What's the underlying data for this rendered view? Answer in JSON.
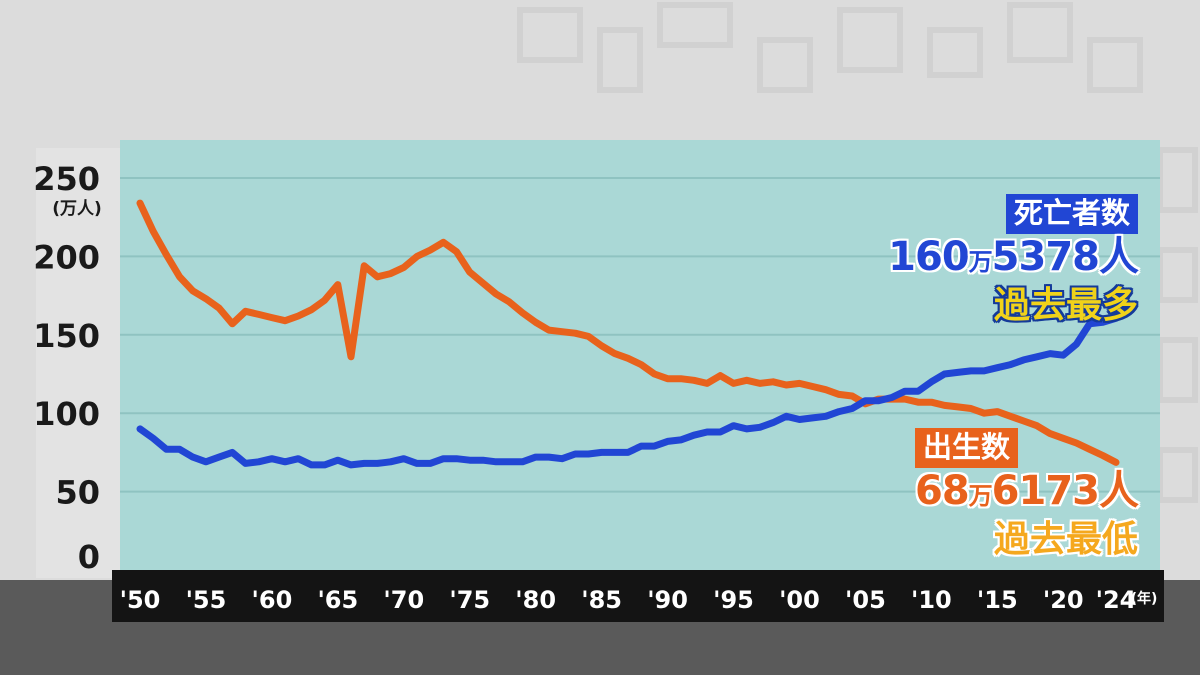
{
  "chart_data": {
    "type": "line",
    "title": "",
    "xlabel": "",
    "ylabel": "",
    "y_unit": "(万人)",
    "x_unit": "(年)",
    "ylim": [
      0,
      250
    ],
    "xlim": [
      1950,
      2024
    ],
    "y_ticks": [
      "250",
      "200",
      "150",
      "100",
      "50",
      "0"
    ],
    "x_ticks": [
      "'50",
      "'55",
      "'60",
      "'65",
      "'70",
      "'75",
      "'80",
      "'85",
      "'90",
      "'95",
      "'00",
      "'05",
      "'10",
      "'15",
      "'20",
      "'24"
    ],
    "grid": true,
    "x": [
      1950,
      1951,
      1952,
      1953,
      1954,
      1955,
      1956,
      1957,
      1958,
      1959,
      1960,
      1961,
      1962,
      1963,
      1964,
      1965,
      1966,
      1967,
      1968,
      1969,
      1970,
      1971,
      1972,
      1973,
      1974,
      1975,
      1976,
      1977,
      1978,
      1979,
      1980,
      1981,
      1982,
      1983,
      1984,
      1985,
      1986,
      1987,
      1988,
      1989,
      1990,
      1991,
      1992,
      1993,
      1994,
      1995,
      1996,
      1997,
      1998,
      1999,
      2000,
      2001,
      2002,
      2003,
      2004,
      2005,
      2006,
      2007,
      2008,
      2009,
      2010,
      2011,
      2012,
      2013,
      2014,
      2015,
      2016,
      2017,
      2018,
      2019,
      2020,
      2021,
      2022,
      2023,
      2024
    ],
    "series": [
      {
        "name": "出生数",
        "color": "#e8621c",
        "values": [
          234,
          216,
          201,
          187,
          178,
          173,
          167,
          157,
          165,
          163,
          161,
          159,
          162,
          166,
          172,
          182,
          136,
          194,
          187,
          189,
          193,
          200,
          204,
          209,
          203,
          190,
          183,
          176,
          171,
          164,
          158,
          153,
          152,
          151,
          149,
          143,
          138,
          135,
          131,
          125,
          122,
          122,
          121,
          119,
          124,
          119,
          121,
          119,
          120,
          118,
          119,
          117,
          115,
          112,
          111,
          106,
          109,
          109,
          109,
          107,
          107,
          105,
          104,
          103,
          100,
          101,
          98,
          95,
          92,
          87,
          84,
          81,
          77,
          73,
          68.6
        ]
      },
      {
        "name": "死亡者数",
        "color": "#2146d4",
        "values": [
          90,
          84,
          77,
          77,
          72,
          69,
          72,
          75,
          68,
          69,
          71,
          69,
          71,
          67,
          67,
          70,
          67,
          68,
          68,
          69,
          71,
          68,
          68,
          71,
          71,
          70,
          70,
          69,
          69,
          69,
          72,
          72,
          71,
          74,
          74,
          75,
          75,
          75,
          79,
          79,
          82,
          83,
          86,
          88,
          88,
          92,
          90,
          91,
          94,
          98,
          96,
          97,
          98,
          101,
          103,
          108,
          108,
          110,
          114,
          114,
          120,
          125,
          126,
          127,
          127,
          129,
          131,
          134,
          136,
          138,
          137,
          144,
          157,
          158,
          160.5
        ]
      }
    ]
  },
  "annotations": {
    "deaths": {
      "label": "死亡者数",
      "value_a": "160",
      "value_unit": "万",
      "value_b": "5378人",
      "note": "過去最多",
      "color": "#2146d4",
      "note_color": "#f0d21a"
    },
    "births": {
      "label": "出生数",
      "value_a": "68",
      "value_unit": "万",
      "value_b": "6173人",
      "note": "過去最低",
      "color": "#e8621c",
      "note_color": "#f5a81e"
    }
  },
  "colors": {
    "plot_background": "#aad8d6",
    "axis_panel": "#e3e3e3",
    "x_axis_band": "#141414",
    "floor": "#5a5a5a",
    "wall": "#dcdcdc"
  }
}
